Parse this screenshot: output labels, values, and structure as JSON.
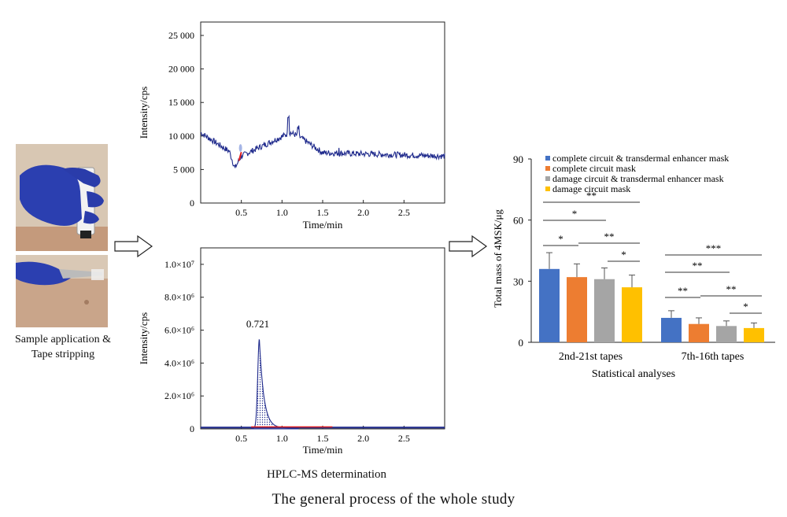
{
  "left": {
    "caption_line1": "Sample application &",
    "caption_line2": "Tape stripping"
  },
  "top_chart": {
    "type": "line",
    "ylabel": "Intensity/cps",
    "xlabel": "Time/min",
    "y_ticks": [
      "0",
      "5 000",
      "10 000",
      "15 000",
      "20 000",
      "25 000"
    ],
    "x_ticks": [
      "0.5",
      "1.0",
      "1.5",
      "2.0",
      "2.5"
    ],
    "ylim": [
      0,
      27000
    ],
    "xlim": [
      0,
      3.0
    ],
    "series_color": "#1f2a8c",
    "peak_marker_color": "#e02020"
  },
  "bottom_chart": {
    "type": "area",
    "ylabel": "Intensity/cps",
    "xlabel": "Time/min",
    "y_ticks": [
      "0",
      "2.0×10⁶",
      "4.0×10⁶",
      "6.0×10⁶",
      "8.0×10⁶",
      "1.0×10⁷"
    ],
    "x_ticks": [
      "0.5",
      "1.0",
      "1.5",
      "2.0",
      "2.5"
    ],
    "ylim": [
      0,
      11000000
    ],
    "xlim": [
      0,
      3.0
    ],
    "peak_label": "0.721",
    "peak_time": 0.721,
    "peak_value": 5400000,
    "series_color": "#1f2a8c",
    "baseline_color": "#e02020"
  },
  "bottom_caption": "HPLC-MS determination",
  "bar_chart": {
    "type": "bar",
    "ylabel": "Total mass of 4MSK/μg",
    "xlabel": "Statistical analyses",
    "y_ticks": [
      "0",
      "30",
      "60",
      "90"
    ],
    "ylim": [
      0,
      90
    ],
    "categories": [
      "2nd-21st tapes",
      "7th-16th tapes"
    ],
    "legend": [
      {
        "name": "complete circuit & transdermal enhancer mask",
        "color": "#4472c4"
      },
      {
        "name": "complete circuit mask",
        "color": "#ed7d31"
      },
      {
        "name": "damage circuit & transdermal enhancer mask",
        "color": "#a5a5a5"
      },
      {
        "name": "damage circuit mask",
        "color": "#ffc000"
      }
    ],
    "values": [
      [
        36,
        32,
        31,
        27
      ],
      [
        12,
        9,
        8,
        7
      ]
    ],
    "errors": [
      [
        8,
        6.5,
        5.5,
        6
      ],
      [
        3.5,
        3,
        2.5,
        2.5
      ]
    ],
    "sig_group1": [
      "**",
      "*",
      "*",
      "**",
      "*"
    ],
    "sig_group2": [
      "***",
      "**",
      "**",
      "**",
      "*"
    ]
  },
  "main_caption": "The general process of the whole study"
}
